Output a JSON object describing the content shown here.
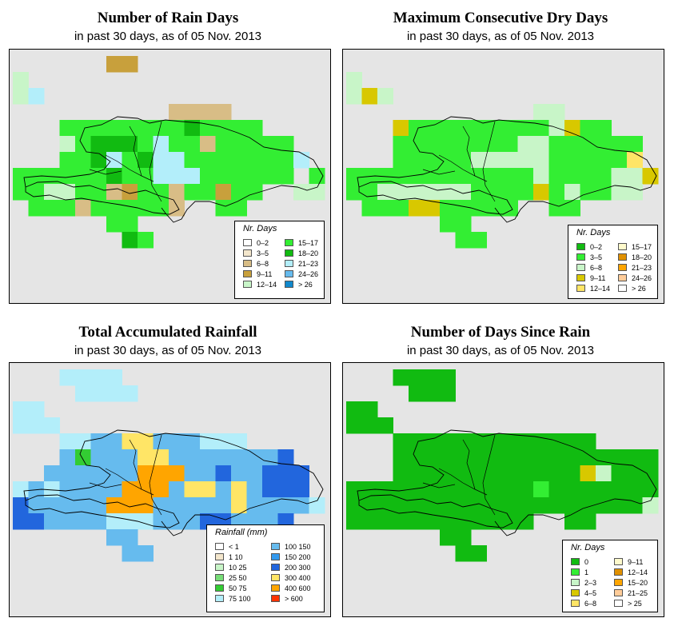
{
  "panels": [
    {
      "title": "Number of Rain Days",
      "subtitle": "in past 30 days, as of  05 Nov. 2013",
      "legend_title": "Nr. Days",
      "legend": [
        {
          "label": "0–2",
          "color": "#ffffff"
        },
        {
          "label": "3–5",
          "color": "#f3e6cc"
        },
        {
          "label": "6–8",
          "color": "#d8bd86"
        },
        {
          "label": "9–11",
          "color": "#c8a03c"
        },
        {
          "label": "12–14",
          "color": "#c8f5c8"
        },
        {
          "label": "15–17",
          "color": "#33ee33"
        },
        {
          "label": "18–20",
          "color": "#11bb11"
        },
        {
          "label": "21–23",
          "color": "#b3eefa"
        },
        {
          "label": "24–26",
          "color": "#66bbee"
        },
        {
          "label": "> 26",
          "color": "#1188cc"
        }
      ]
    },
    {
      "title": "Maximum Consecutive Dry Days",
      "subtitle": "in past 30 days, as of  05 Nov. 2013",
      "legend_title": "Nr. Days",
      "legend": [
        {
          "label": "0–2",
          "color": "#11bb11"
        },
        {
          "label": "3–5",
          "color": "#33ee33"
        },
        {
          "label": "6–8",
          "color": "#c8f5c8"
        },
        {
          "label": "9–11",
          "color": "#d8c800"
        },
        {
          "label": "12–14",
          "color": "#ffe566"
        },
        {
          "label": "15–17",
          "color": "#fffacc"
        },
        {
          "label": "18–20",
          "color": "#e09000"
        },
        {
          "label": "21–23",
          "color": "#ffa500"
        },
        {
          "label": "24–26",
          "color": "#ffcc99"
        },
        {
          "label": "> 26",
          "color": "#ffffff"
        }
      ]
    },
    {
      "title": "Total Accumulated Rainfall",
      "subtitle": "in past 30 days, as of  05 Nov. 2013",
      "legend_title": "Rainfall (mm)",
      "legend": [
        {
          "label": "< 1",
          "color": "#ffffff"
        },
        {
          "label": "1   10",
          "color": "#f3e6cc"
        },
        {
          "label": "10   25",
          "color": "#c8f5c8"
        },
        {
          "label": "25   50",
          "color": "#77dd77"
        },
        {
          "label": "50   75",
          "color": "#33cc33"
        },
        {
          "label": "75   100",
          "color": "#b3eefa"
        },
        {
          "label": "100  150",
          "color": "#66bbee"
        },
        {
          "label": "150  200",
          "color": "#3399ee"
        },
        {
          "label": "200  300",
          "color": "#2266dd"
        },
        {
          "label": "300  400",
          "color": "#ffe566"
        },
        {
          "label": "400  600",
          "color": "#ffa500"
        },
        {
          "label": "> 600",
          "color": "#ff3300"
        }
      ]
    },
    {
      "title": "Number of Days Since Rain",
      "subtitle": "in past 30 days, as of  05 Nov. 2013",
      "legend_title": "Nr. Days",
      "legend": [
        {
          "label": "0",
          "color": "#11bb11"
        },
        {
          "label": "1",
          "color": "#33ee33"
        },
        {
          "label": "2–3",
          "color": "#c8f5c8"
        },
        {
          "label": "4–5",
          "color": "#d8c800"
        },
        {
          "label": "6–8",
          "color": "#ffe566"
        },
        {
          "label": "9–11",
          "color": "#fffacc"
        },
        {
          "label": "12–14",
          "color": "#e09000"
        },
        {
          "label": "15–20",
          "color": "#ffa500"
        },
        {
          "label": "21–25",
          "color": "#ffcc99"
        },
        {
          "label": "> 25",
          "color": "#ffffff"
        }
      ]
    }
  ],
  "map_grid": {
    "rows": 12,
    "cols": 20,
    "panels": [
      [
        "......BB............",
        "S...................",
        "Ss..................",
        "..........dddd......",
        "...AAGGGGGGgAAGG....",
        "...SGgggGTGGdGGGAA..",
        "...GGgTGgTTGGAAGGAs.",
        "GAGGGGgGGTTTAGGGGA.A",
        "GGSSGGdBAAdAABAA..SS",
        ".GGGdGGGGGd..GG.....",
        "......GG............",
        ".......gG..........."
      ],
      [
        "....................",
        "S...................",
        "SYA.................",
        "............AA......",
        "...YGGGGGGGGGAYGG...",
        "...GGGGGGGGAAGGGGGG.",
        "...GGGGGAAAAAGGGGGg.",
        "GGGGGGGGGGGGAGGGGAAY",
        "GGASAAAAGGGGYGAGGAA.",
        ".GGGYYGGGGG..GG.....",
        "......GG............",
        ".......GG..........."
      ],
      [
        "...CCCC.............",
        "....CCCC............",
        "CC..................",
        "CCC.................",
        "...CCBBYYBBBCCC.....",
        "...BgBBBYYBBBBBBBD..",
        "..BBBBBBOOOBBDBBDDD.",
        "CBCBBBBOOOBYYBYBDDD.",
        "DBBBBBOOOBBBBBYBBBBC",
        "DDBBBBCCCBBBDDBBBD..",
        "......BB............",
        ".......BB..........."
      ],
      [
        "...GGGG.............",
        "....GGG.............",
        "GG..................",
        "GGG.................",
        "...GGGGGGGGGGGGG....",
        "...GGGGGGGGGGGGGGGGG",
        "...GGGGGGGGGGGGYLGGG",
        "GGGGGGGGGGGGAGGGGGGG",
        "GGGGGGGGGGGGGGGGGGGS",
        "GGGGGGGGGGGG..GG....",
        "......GG............",
        ".......GG..........."
      ]
    ],
    "color_codes": [
      {
        "S": "#c8f5c8",
        "s": "#b3eefa",
        "B": "#c8a03c",
        "A": "#33ee33",
        "G": "#33ee33",
        "g": "#11bb11",
        "d": "#d8bd86",
        "T": "#b3eefa"
      },
      {
        "S": "#c8f5c8",
        "Y": "#d8c800",
        "A": "#c8f5c8",
        "G": "#33ee33",
        "g": "#ffe566"
      },
      {
        "C": "#b3eefa",
        "B": "#66bbee",
        "Y": "#ffe566",
        "O": "#ffa500",
        "D": "#2266dd",
        "g": "#33cc33"
      },
      {
        "G": "#11bb11",
        "A": "#33ee33",
        "Y": "#d8c800",
        "L": "#c8f5c8",
        "S": "#c8f5c8"
      }
    ]
  }
}
